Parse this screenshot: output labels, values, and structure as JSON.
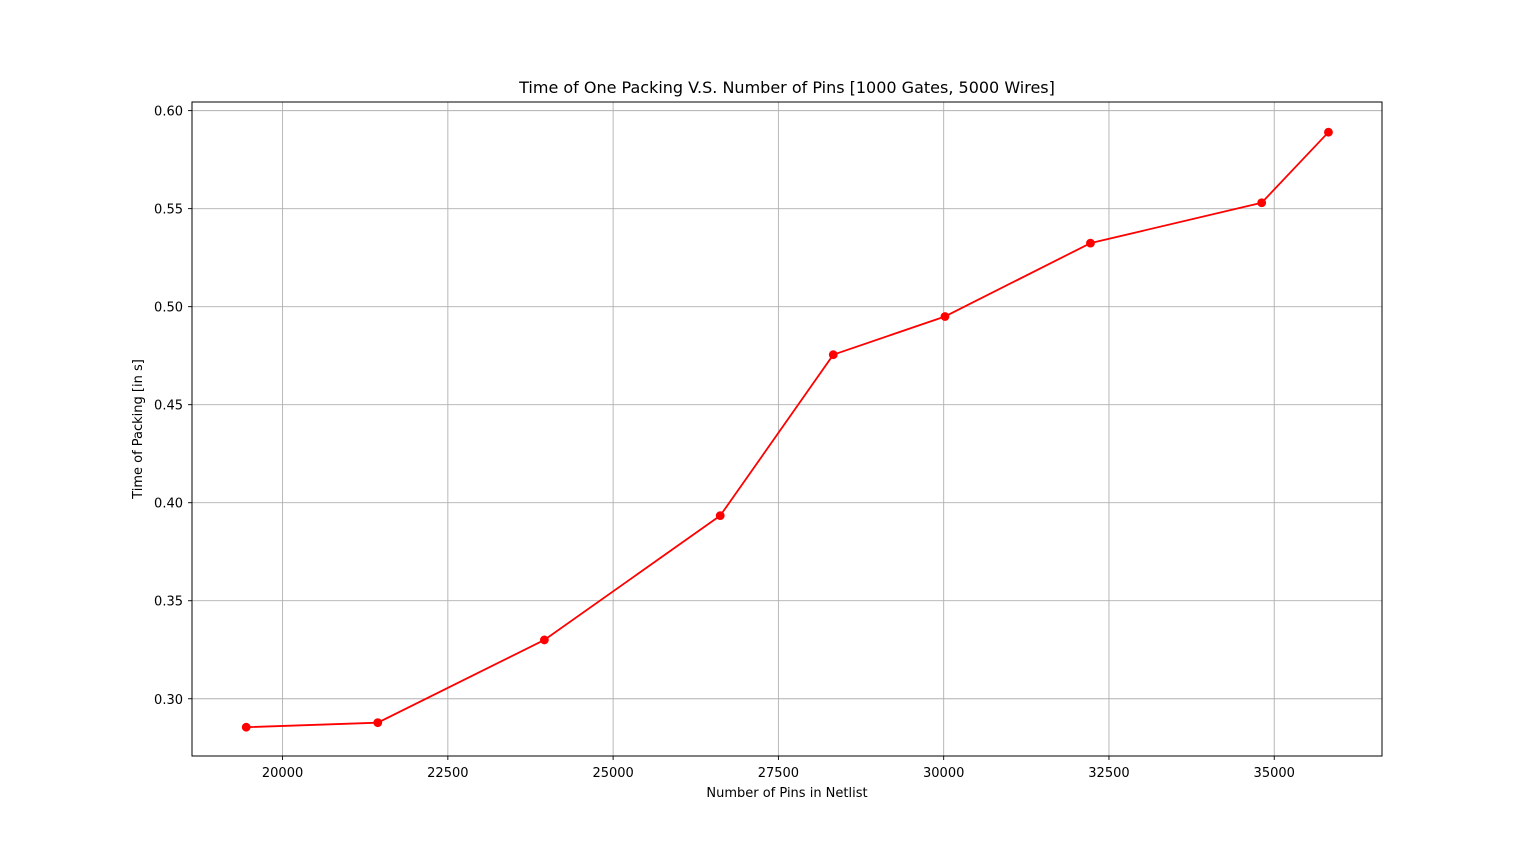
{
  "chart_data": {
    "type": "line",
    "title": "Time of One Packing V.S. Number of Pins [1000 Gates, 5000 Wires]",
    "xlabel": "Number of Pins in Netlist",
    "ylabel": "Time of Packing [in s]",
    "xlim": [
      18630,
      36630
    ],
    "ylim": [
      0.2708,
      0.6044
    ],
    "xticks": [
      20000,
      22500,
      25000,
      27500,
      30000,
      32500,
      35000
    ],
    "xtick_labels": [
      "20000",
      "22500",
      "25000",
      "27500",
      "30000",
      "32500",
      "35000"
    ],
    "yticks": [
      0.3,
      0.35,
      0.4,
      0.45,
      0.5,
      0.55,
      0.6
    ],
    "ytick_labels": [
      "0.30",
      "0.35",
      "0.40",
      "0.45",
      "0.50",
      "0.55",
      "0.60"
    ],
    "grid": true,
    "series": [
      {
        "color": "#ff0000",
        "marker": "circle",
        "x": [
          19450,
          21440,
          23960,
          26620,
          28330,
          30020,
          32220,
          34810,
          35820
        ],
        "y": [
          0.2855,
          0.2878,
          0.33,
          0.3934,
          0.4755,
          0.495,
          0.5324,
          0.553,
          0.589
        ]
      }
    ]
  }
}
